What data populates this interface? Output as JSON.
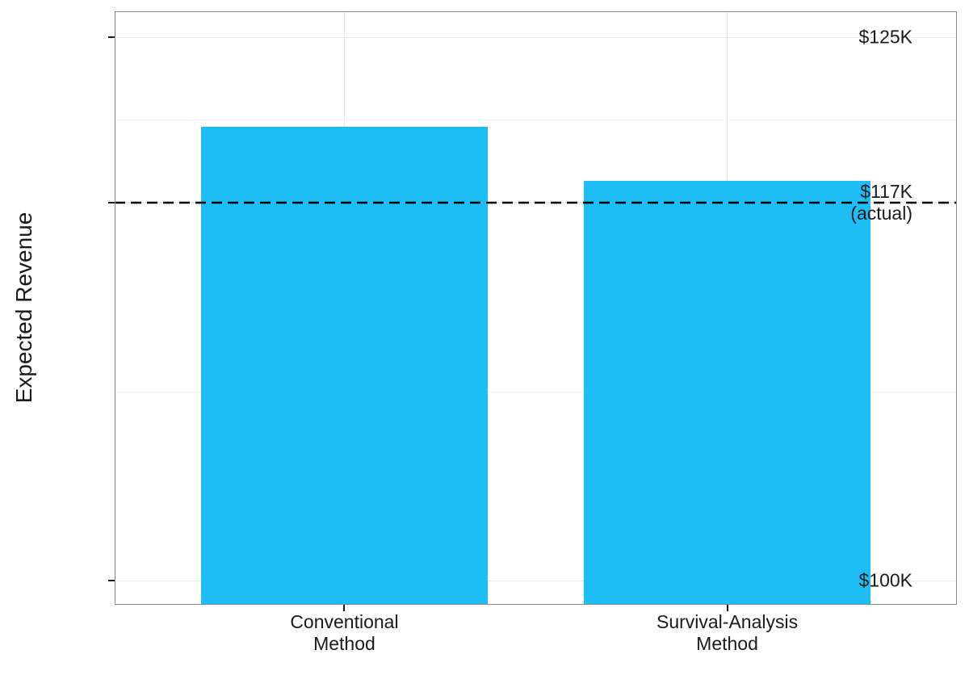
{
  "chart_data": {
    "type": "bar",
    "title": "",
    "ylabel": "Expected Revenue",
    "xlabel": "",
    "unit": "USD thousands",
    "categories": [
      {
        "line1": "Conventional",
        "line2": "Method"
      },
      {
        "line1": "Survival-Analysis",
        "line2": "Method"
      }
    ],
    "values_thousands": [
      120.9,
      118.4
    ],
    "bar_color": "#1CBEF5",
    "reference_line": {
      "value_thousands": 117.4,
      "label": "$117K (actual)",
      "style": "dashed",
      "color": "#000000"
    },
    "yticks": [
      {
        "value_thousands": 125,
        "line1": "$125K",
        "line2": ""
      },
      {
        "value_thousands": 117.4,
        "line1": "$117K",
        "line2": "(actual)"
      },
      {
        "value_thousands": 100,
        "line1": "$100K",
        "line2": ""
      }
    ],
    "minor_gridlines_thousands": [
      121.2,
      108.7
    ],
    "ylim_thousands": [
      98.9,
      126.2
    ],
    "grid": true,
    "legend": false
  }
}
